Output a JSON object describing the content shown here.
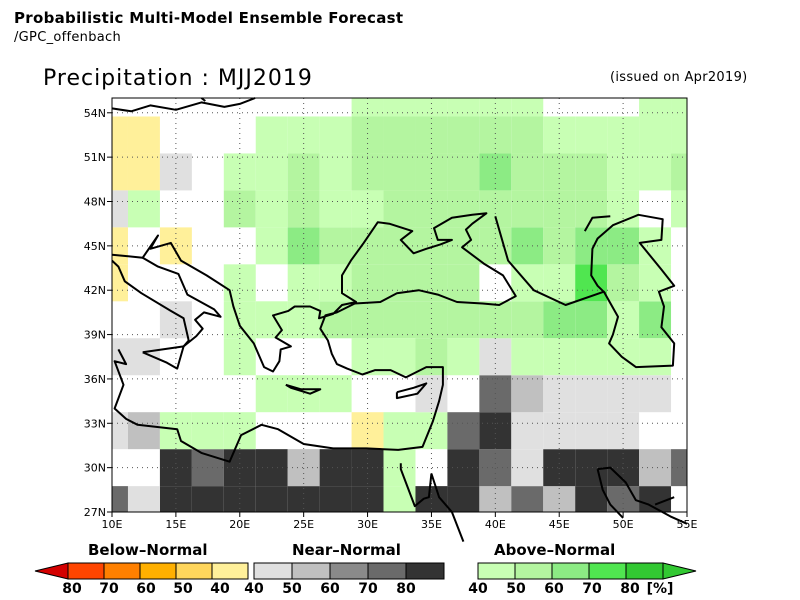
{
  "header": {
    "title": "Probabilistic Multi-Model Ensemble Forecast",
    "subtitle": "/GPC_offenbach",
    "variable_title": "Precipitation : MJJ2019",
    "issued": "(issued on Apr2019)"
  },
  "colors": {
    "below": [
      "#fff09a",
      "#ffd65c",
      "#ffb000",
      "#ff8000",
      "#ff4500",
      "#d40000"
    ],
    "near": [
      "#e0e0e0",
      "#c0c0c0",
      "#8a8a8a",
      "#6a6a6a",
      "#333333"
    ],
    "above": [
      "#c8ffb4",
      "#b4f5a0",
      "#8ceb84",
      "#50e650",
      "#32c832",
      "#1eb41e"
    ],
    "coast": "#000000"
  },
  "chart_data": {
    "type": "heatmap",
    "lon_range": [
      10,
      55
    ],
    "lat_range": [
      27,
      55
    ],
    "x_ticks": [
      "10E",
      "15E",
      "20E",
      "25E",
      "30E",
      "35E",
      "40E",
      "45E",
      "50E",
      "55E"
    ],
    "y_ticks": [
      "54N",
      "51N",
      "48N",
      "45N",
      "42N",
      "39N",
      "36N",
      "33N",
      "30N",
      "27N"
    ],
    "grid_lines": true,
    "cell_size_deg": 2.5,
    "cells": [
      {
        "lon": 10,
        "lat": 52.5,
        "cat": "B40"
      },
      {
        "lon": 12.5,
        "lat": 52.5,
        "cat": "B40"
      },
      {
        "lon": 10,
        "lat": 50,
        "cat": "B40"
      },
      {
        "lon": 12.5,
        "lat": 50,
        "cat": "B40"
      },
      {
        "lon": 10,
        "lat": 47.5,
        "cat": "N40"
      },
      {
        "lon": 10,
        "lat": 45,
        "cat": "B40"
      },
      {
        "lon": 15,
        "lat": 45,
        "cat": "B40"
      },
      {
        "lon": 10,
        "lat": 42.5,
        "cat": "B40"
      },
      {
        "lon": 15,
        "lat": 50,
        "cat": "N40"
      },
      {
        "lon": 15,
        "lat": 40,
        "cat": "N40"
      },
      {
        "lon": 10,
        "lat": 37.5,
        "cat": "N40"
      },
      {
        "lon": 12.5,
        "lat": 37.5,
        "cat": "N40"
      },
      {
        "lon": 10,
        "lat": 32.5,
        "cat": "N40"
      },
      {
        "lon": 12.5,
        "lat": 32.5,
        "cat": "N50"
      },
      {
        "lon": 15,
        "lat": 27.5,
        "cat": "N80"
      },
      {
        "lon": 17.5,
        "lat": 27.5,
        "cat": "N80"
      },
      {
        "lon": 20,
        "lat": 27.5,
        "cat": "N80"
      },
      {
        "lon": 22.5,
        "lat": 27.5,
        "cat": "N80"
      },
      {
        "lon": 25,
        "lat": 27.5,
        "cat": "N80"
      },
      {
        "lon": 27.5,
        "lat": 27.5,
        "cat": "N80"
      },
      {
        "lon": 30,
        "lat": 27.5,
        "cat": "N80"
      },
      {
        "lon": 15,
        "lat": 30,
        "cat": "N80"
      },
      {
        "lon": 17.5,
        "lat": 30,
        "cat": "N70"
      },
      {
        "lon": 20,
        "lat": 30,
        "cat": "N80"
      },
      {
        "lon": 22.5,
        "lat": 30,
        "cat": "N80"
      },
      {
        "lon": 25,
        "lat": 30,
        "cat": "N50"
      },
      {
        "lon": 27.5,
        "lat": 30,
        "cat": "N80"
      },
      {
        "lon": 30,
        "lat": 30,
        "cat": "N80"
      },
      {
        "lon": 10,
        "lat": 27.5,
        "cat": "N70"
      },
      {
        "lon": 12.5,
        "lat": 27.5,
        "cat": "N40"
      },
      {
        "lon": 15,
        "lat": 32.5,
        "cat": "A40"
      },
      {
        "lon": 17.5,
        "lat": 32.5,
        "cat": "A40"
      },
      {
        "lon": 20,
        "lat": 32.5,
        "cat": "A40"
      },
      {
        "lon": 30,
        "lat": 32.5,
        "cat": "B40"
      },
      {
        "lon": 32.5,
        "lat": 32.5,
        "cat": "A40"
      },
      {
        "lon": 35,
        "lat": 32.5,
        "cat": "A40"
      },
      {
        "lon": 32.5,
        "lat": 30,
        "cat": "A40"
      },
      {
        "lon": 32.5,
        "lat": 27.5,
        "cat": "A40"
      },
      {
        "lon": 35,
        "lat": 27.5,
        "cat": "N80"
      },
      {
        "lon": 37.5,
        "lat": 27.5,
        "cat": "N80"
      },
      {
        "lon": 40,
        "lat": 27.5,
        "cat": "N50"
      },
      {
        "lon": 42.5,
        "lat": 27.5,
        "cat": "N70"
      },
      {
        "lon": 45,
        "lat": 27.5,
        "cat": "N50"
      },
      {
        "lon": 47.5,
        "lat": 27.5,
        "cat": "N80"
      },
      {
        "lon": 50,
        "lat": 27.5,
        "cat": "N70"
      },
      {
        "lon": 52.5,
        "lat": 27.5,
        "cat": "N80"
      },
      {
        "lon": 37.5,
        "lat": 30,
        "cat": "N80"
      },
      {
        "lon": 40,
        "lat": 30,
        "cat": "N70"
      },
      {
        "lon": 42.5,
        "lat": 30,
        "cat": "N40"
      },
      {
        "lon": 45,
        "lat": 30,
        "cat": "N80"
      },
      {
        "lon": 47.5,
        "lat": 30,
        "cat": "N80"
      },
      {
        "lon": 50,
        "lat": 30,
        "cat": "N80"
      },
      {
        "lon": 52.5,
        "lat": 30,
        "cat": "N50"
      },
      {
        "lon": 55,
        "lat": 30,
        "cat": "N70"
      },
      {
        "lon": 37.5,
        "lat": 32.5,
        "cat": "N70"
      },
      {
        "lon": 40,
        "lat": 32.5,
        "cat": "N80"
      },
      {
        "lon": 42.5,
        "lat": 32.5,
        "cat": "N40"
      },
      {
        "lon": 45,
        "lat": 32.5,
        "cat": "N40"
      },
      {
        "lon": 47.5,
        "lat": 32.5,
        "cat": "N40"
      },
      {
        "lon": 50,
        "lat": 32.5,
        "cat": "N40"
      },
      {
        "lon": 40,
        "lat": 35,
        "cat": "N70"
      },
      {
        "lon": 42.5,
        "lat": 35,
        "cat": "N50"
      },
      {
        "lon": 45,
        "lat": 35,
        "cat": "N40"
      },
      {
        "lon": 47.5,
        "lat": 35,
        "cat": "N40"
      },
      {
        "lon": 50,
        "lat": 35,
        "cat": "N40"
      },
      {
        "lon": 52.5,
        "lat": 35,
        "cat": "N40"
      },
      {
        "lon": 40,
        "lat": 37.5,
        "cat": "N40"
      },
      {
        "lon": 35,
        "lat": 35,
        "cat": "N40"
      },
      {
        "lon": 30,
        "lat": 37.5,
        "cat": "A40"
      },
      {
        "lon": 22.5,
        "lat": 35,
        "cat": "A40"
      },
      {
        "lon": 25,
        "lat": 35,
        "cat": "A40"
      },
      {
        "lon": 27.5,
        "lat": 35,
        "cat": "A40"
      },
      {
        "lon": 20,
        "lat": 37.5,
        "cat": "A40"
      },
      {
        "lon": 20,
        "lat": 40,
        "cat": "A40"
      },
      {
        "lon": 22.5,
        "lat": 40,
        "cat": "A40"
      },
      {
        "lon": 25,
        "lat": 40,
        "cat": "A40"
      },
      {
        "lon": 27.5,
        "lat": 40,
        "cat": "A50"
      },
      {
        "lon": 30,
        "lat": 40,
        "cat": "A50"
      },
      {
        "lon": 32.5,
        "lat": 40,
        "cat": "A50"
      },
      {
        "lon": 35,
        "lat": 40,
        "cat": "A50"
      },
      {
        "lon": 37.5,
        "lat": 40,
        "cat": "A50"
      },
      {
        "lon": 40,
        "lat": 40,
        "cat": "A50"
      },
      {
        "lon": 42.5,
        "lat": 40,
        "cat": "A50"
      },
      {
        "lon": 45,
        "lat": 40,
        "cat": "A60"
      },
      {
        "lon": 47.5,
        "lat": 40,
        "cat": "A60"
      },
      {
        "lon": 50,
        "lat": 40,
        "cat": "A40"
      },
      {
        "lon": 52.5,
        "lat": 40,
        "cat": "A60"
      },
      {
        "lon": 32.5,
        "lat": 37.5,
        "cat": "A40"
      },
      {
        "lon": 35,
        "lat": 37.5,
        "cat": "A50"
      },
      {
        "lon": 37.5,
        "lat": 37.5,
        "cat": "A40"
      },
      {
        "lon": 42.5,
        "lat": 37.5,
        "cat": "A40"
      },
      {
        "lon": 45,
        "lat": 37.5,
        "cat": "A40"
      },
      {
        "lon": 47.5,
        "lat": 37.5,
        "cat": "A40"
      },
      {
        "lon": 50,
        "lat": 37.5,
        "cat": "A40"
      },
      {
        "lon": 52.5,
        "lat": 37.5,
        "cat": "A40"
      },
      {
        "lon": 20,
        "lat": 42.5,
        "cat": "A40"
      },
      {
        "lon": 25,
        "lat": 42.5,
        "cat": "A40"
      },
      {
        "lon": 27.5,
        "lat": 42.5,
        "cat": "A40"
      },
      {
        "lon": 30,
        "lat": 42.5,
        "cat": "A50"
      },
      {
        "lon": 32.5,
        "lat": 42.5,
        "cat": "A50"
      },
      {
        "lon": 35,
        "lat": 42.5,
        "cat": "A50"
      },
      {
        "lon": 37.5,
        "lat": 42.5,
        "cat": "A50"
      },
      {
        "lon": 42.5,
        "lat": 42.5,
        "cat": "A40"
      },
      {
        "lon": 45,
        "lat": 42.5,
        "cat": "A40"
      },
      {
        "lon": 47.5,
        "lat": 42.5,
        "cat": "A70"
      },
      {
        "lon": 50,
        "lat": 42.5,
        "cat": "A50"
      },
      {
        "lon": 52.5,
        "lat": 42.5,
        "cat": "A40"
      },
      {
        "lon": 22.5,
        "lat": 45,
        "cat": "A40"
      },
      {
        "lon": 25,
        "lat": 45,
        "cat": "A60"
      },
      {
        "lon": 27.5,
        "lat": 45,
        "cat": "A50"
      },
      {
        "lon": 30,
        "lat": 45,
        "cat": "A50"
      },
      {
        "lon": 32.5,
        "lat": 45,
        "cat": "A50"
      },
      {
        "lon": 35,
        "lat": 45,
        "cat": "A50"
      },
      {
        "lon": 37.5,
        "lat": 45,
        "cat": "A50"
      },
      {
        "lon": 40,
        "lat": 45,
        "cat": "A50"
      },
      {
        "lon": 42.5,
        "lat": 45,
        "cat": "A60"
      },
      {
        "lon": 45,
        "lat": 45,
        "cat": "A50"
      },
      {
        "lon": 47.5,
        "lat": 45,
        "cat": "A60"
      },
      {
        "lon": 50,
        "lat": 45,
        "cat": "A60"
      },
      {
        "lon": 52.5,
        "lat": 45,
        "cat": "A40"
      },
      {
        "lon": 12.5,
        "lat": 47.5,
        "cat": "A40"
      },
      {
        "lon": 20,
        "lat": 47.5,
        "cat": "A50"
      },
      {
        "lon": 22.5,
        "lat": 47.5,
        "cat": "A40"
      },
      {
        "lon": 25,
        "lat": 47.5,
        "cat": "A50"
      },
      {
        "lon": 27.5,
        "lat": 47.5,
        "cat": "A40"
      },
      {
        "lon": 30,
        "lat": 47.5,
        "cat": "A40"
      },
      {
        "lon": 32.5,
        "lat": 47.5,
        "cat": "A50"
      },
      {
        "lon": 35,
        "lat": 47.5,
        "cat": "A50"
      },
      {
        "lon": 37.5,
        "lat": 47.5,
        "cat": "A50"
      },
      {
        "lon": 40,
        "lat": 47.5,
        "cat": "A50"
      },
      {
        "lon": 42.5,
        "lat": 47.5,
        "cat": "A50"
      },
      {
        "lon": 45,
        "lat": 47.5,
        "cat": "A50"
      },
      {
        "lon": 47.5,
        "lat": 47.5,
        "cat": "A50"
      },
      {
        "lon": 50,
        "lat": 47.5,
        "cat": "A40"
      },
      {
        "lon": 55,
        "lat": 47.5,
        "cat": "A40"
      },
      {
        "lon": 20,
        "lat": 50,
        "cat": "A40"
      },
      {
        "lon": 22.5,
        "lat": 50,
        "cat": "A40"
      },
      {
        "lon": 25,
        "lat": 50,
        "cat": "A50"
      },
      {
        "lon": 27.5,
        "lat": 50,
        "cat": "A40"
      },
      {
        "lon": 30,
        "lat": 50,
        "cat": "A50"
      },
      {
        "lon": 32.5,
        "lat": 50,
        "cat": "A50"
      },
      {
        "lon": 35,
        "lat": 50,
        "cat": "A50"
      },
      {
        "lon": 37.5,
        "lat": 50,
        "cat": "A50"
      },
      {
        "lon": 40,
        "lat": 50,
        "cat": "A60"
      },
      {
        "lon": 42.5,
        "lat": 50,
        "cat": "A50"
      },
      {
        "lon": 45,
        "lat": 50,
        "cat": "A50"
      },
      {
        "lon": 47.5,
        "lat": 50,
        "cat": "A50"
      },
      {
        "lon": 50,
        "lat": 50,
        "cat": "A40"
      },
      {
        "lon": 52.5,
        "lat": 50,
        "cat": "A40"
      },
      {
        "lon": 55,
        "lat": 50,
        "cat": "A50"
      },
      {
        "lon": 22.5,
        "lat": 52.5,
        "cat": "A40"
      },
      {
        "lon": 25,
        "lat": 52.5,
        "cat": "A40"
      },
      {
        "lon": 27.5,
        "lat": 52.5,
        "cat": "A40"
      },
      {
        "lon": 30,
        "lat": 52.5,
        "cat": "A50"
      },
      {
        "lon": 32.5,
        "lat": 52.5,
        "cat": "A50"
      },
      {
        "lon": 35,
        "lat": 52.5,
        "cat": "A50"
      },
      {
        "lon": 37.5,
        "lat": 52.5,
        "cat": "A50"
      },
      {
        "lon": 40,
        "lat": 52.5,
        "cat": "A50"
      },
      {
        "lon": 42.5,
        "lat": 52.5,
        "cat": "A50"
      },
      {
        "lon": 45,
        "lat": 52.5,
        "cat": "A40"
      },
      {
        "lon": 47.5,
        "lat": 52.5,
        "cat": "A40"
      },
      {
        "lon": 50,
        "lat": 52.5,
        "cat": "A40"
      },
      {
        "lon": 52.5,
        "lat": 52.5,
        "cat": "A40"
      },
      {
        "lon": 55,
        "lat": 52.5,
        "cat": "A40"
      },
      {
        "lon": 30,
        "lat": 55,
        "cat": "A40"
      },
      {
        "lon": 32.5,
        "lat": 55,
        "cat": "A40"
      },
      {
        "lon": 35,
        "lat": 55,
        "cat": "A40"
      },
      {
        "lon": 37.5,
        "lat": 55,
        "cat": "A40"
      },
      {
        "lon": 40,
        "lat": 55,
        "cat": "A40"
      },
      {
        "lon": 42.5,
        "lat": 55,
        "cat": "A40"
      },
      {
        "lon": 52.5,
        "lat": 55,
        "cat": "A40"
      },
      {
        "lon": 55,
        "lat": 55,
        "cat": "A40"
      }
    ]
  },
  "legend": {
    "below": {
      "title": "Below–Normal",
      "labels": [
        "80",
        "70",
        "60",
        "50",
        "40"
      ]
    },
    "near": {
      "title": "Near–Normal",
      "labels": [
        "40",
        "50",
        "60",
        "70",
        "80"
      ]
    },
    "above": {
      "title": "Above–Normal",
      "labels": [
        "40",
        "50",
        "60",
        "70",
        "80"
      ]
    },
    "unit": "[%]"
  }
}
